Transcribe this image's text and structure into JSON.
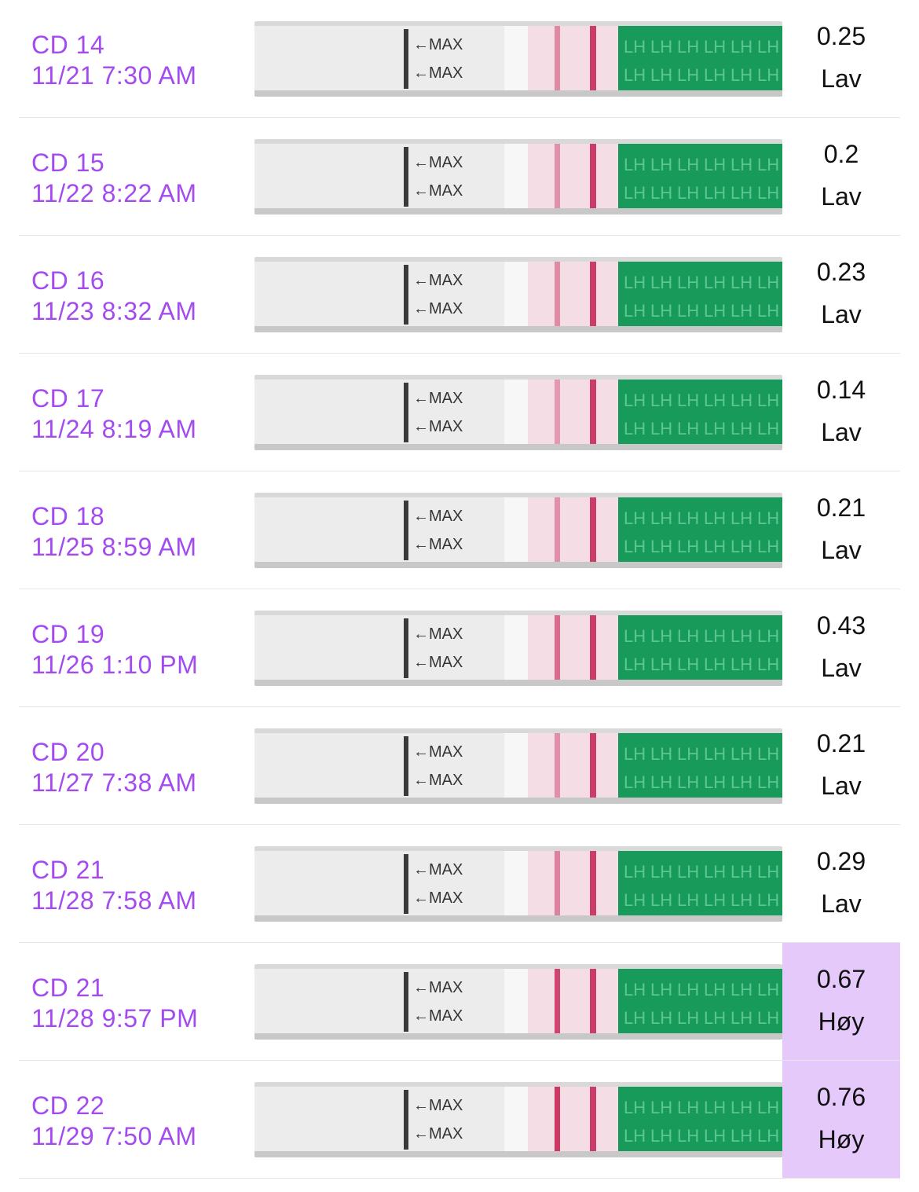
{
  "colors": {
    "label": "#a44bf0",
    "high_bg": "#e5c9fb",
    "strip_white": "#ececec",
    "strip_green": "#189a5a",
    "test_line": "#c82a5a"
  },
  "rows": [
    {
      "cycle_day": "CD 14",
      "datetime": "11/21 7:30 AM",
      "ratio": "0.25",
      "level": "Lav",
      "high": false,
      "test_line_strength": 0.25
    },
    {
      "cycle_day": "CD 15",
      "datetime": "11/22 8:22 AM",
      "ratio": "0.2",
      "level": "Lav",
      "high": false,
      "test_line_strength": 0.2
    },
    {
      "cycle_day": "CD 16",
      "datetime": "11/23 8:32 AM",
      "ratio": "0.23",
      "level": "Lav",
      "high": false,
      "test_line_strength": 0.23
    },
    {
      "cycle_day": "CD 17",
      "datetime": "11/24 8:19 AM",
      "ratio": "0.14",
      "level": "Lav",
      "high": false,
      "test_line_strength": 0.14
    },
    {
      "cycle_day": "CD 18",
      "datetime": "11/25 8:59 AM",
      "ratio": "0.21",
      "level": "Lav",
      "high": false,
      "test_line_strength": 0.21
    },
    {
      "cycle_day": "CD 19",
      "datetime": "11/26 1:10 PM",
      "ratio": "0.43",
      "level": "Lav",
      "high": false,
      "test_line_strength": 0.43
    },
    {
      "cycle_day": "CD 20",
      "datetime": "11/27 7:38 AM",
      "ratio": "0.21",
      "level": "Lav",
      "high": false,
      "test_line_strength": 0.21
    },
    {
      "cycle_day": "CD 21",
      "datetime": "11/28 7:58 AM",
      "ratio": "0.29",
      "level": "Lav",
      "high": false,
      "test_line_strength": 0.29
    },
    {
      "cycle_day": "CD 21",
      "datetime": "11/28 9:57 PM",
      "ratio": "0.67",
      "level": "Høy",
      "high": true,
      "test_line_strength": 0.67
    },
    {
      "cycle_day": "CD 22",
      "datetime": "11/29 7:50 AM",
      "ratio": "0.76",
      "level": "Høy",
      "high": true,
      "test_line_strength": 0.76
    }
  ],
  "strip_text": {
    "max_label": "←MAX",
    "lh_label": "LH"
  }
}
